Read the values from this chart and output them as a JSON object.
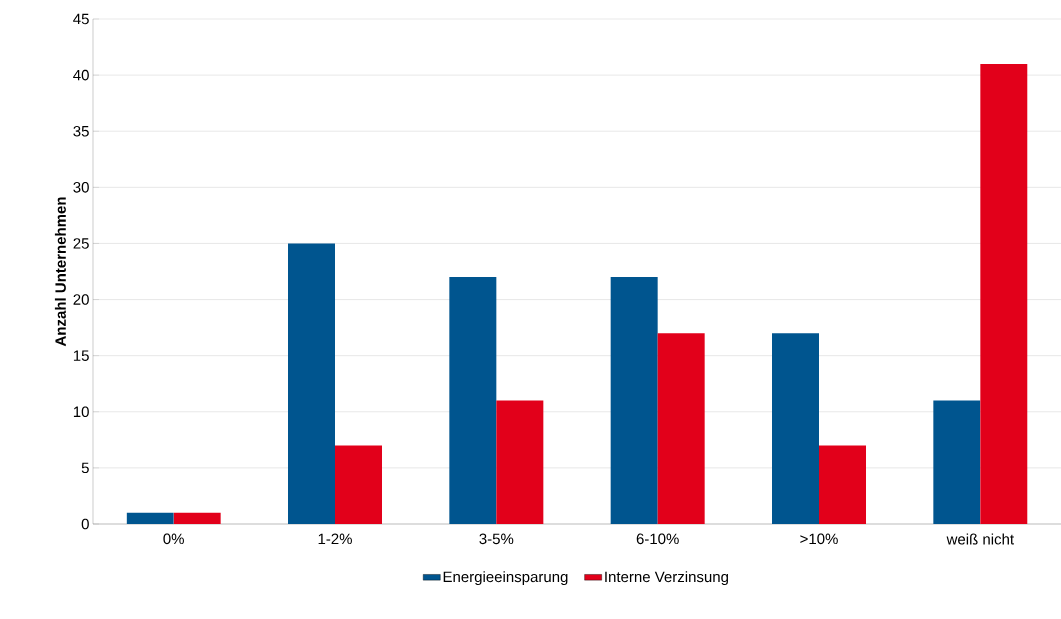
{
  "chart_data": {
    "type": "bar",
    "ylabel": "Anzahl Unternehmen",
    "categories": [
      "0%",
      "1-2%",
      "3-5%",
      "6-10%",
      ">10%",
      "weiß nicht"
    ],
    "series": [
      {
        "name": "Energieeinsparung",
        "color": "#00558f",
        "values": [
          1,
          25,
          22,
          22,
          17,
          11
        ]
      },
      {
        "name": "Interne Verzinsung",
        "color": "#e2001a",
        "values": [
          1,
          7,
          11,
          17,
          7,
          41
        ]
      }
    ],
    "ylim": [
      0,
      45
    ],
    "yticks": [
      0,
      5,
      10,
      15,
      20,
      25,
      30,
      35,
      40,
      45
    ],
    "grid": "y",
    "legend": "bottom"
  }
}
